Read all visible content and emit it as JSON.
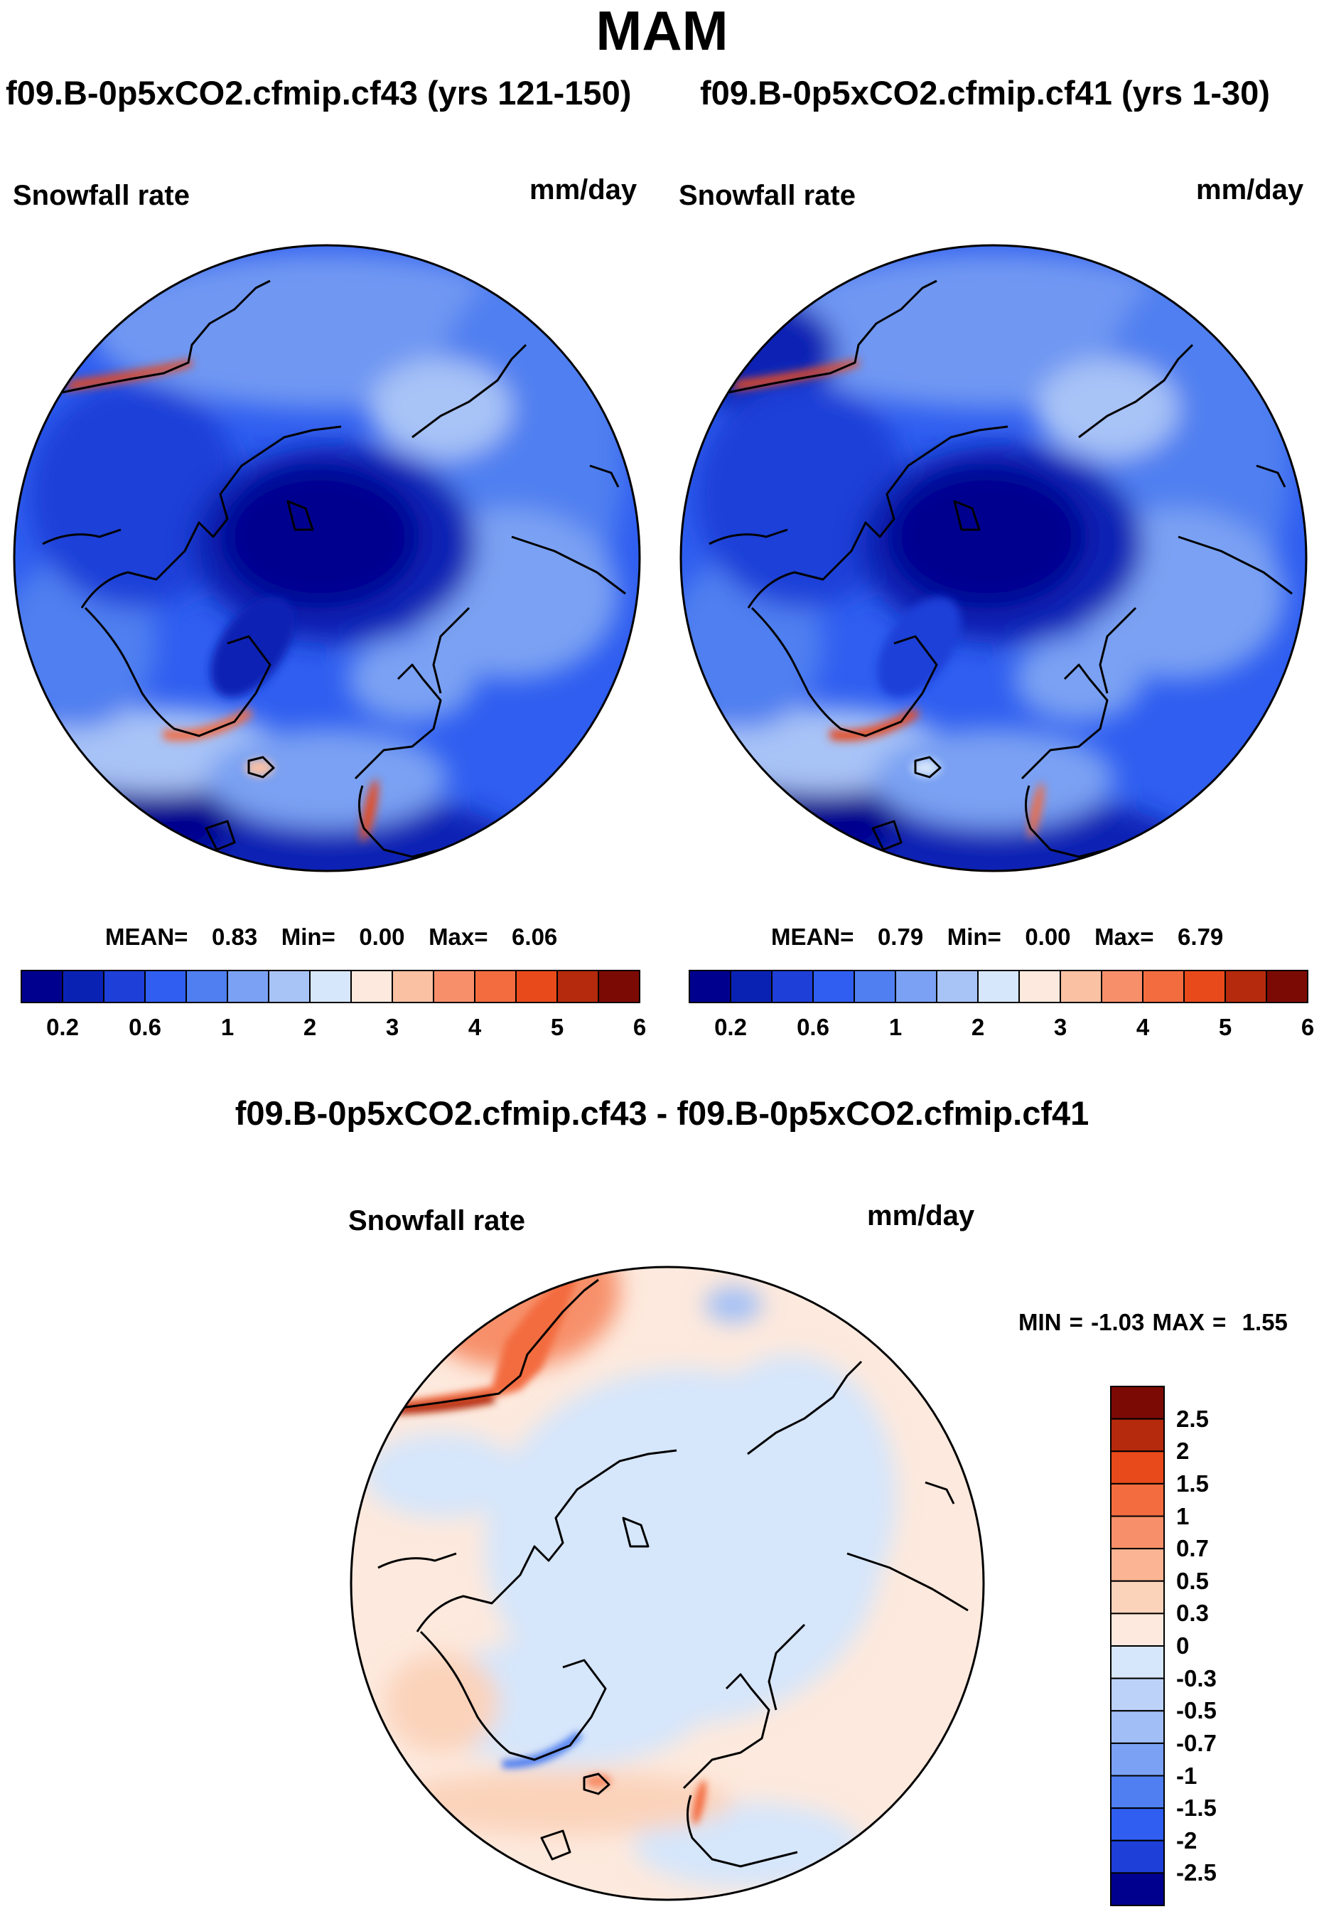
{
  "season": "MAM",
  "panels": [
    {
      "case": "f09.B-0p5xCO2.cfmip.cf43 (yrs 121-150)",
      "variable": "Snowfall rate",
      "units": "mm/day",
      "stats": {
        "mean_label": "MEAN=",
        "mean": "0.83",
        "min_label": "Min=",
        "min": "0.00",
        "max_label": "Max=",
        "max": "6.06"
      }
    },
    {
      "case": "f09.B-0p5xCO2.cfmip.cf41 (yrs 1-30)",
      "variable": "Snowfall rate",
      "units": "mm/day",
      "stats": {
        "mean_label": "MEAN=",
        "mean": "0.79",
        "min_label": "Min=",
        "min": "0.00",
        "max_label": "Max=",
        "max": "6.79"
      }
    }
  ],
  "difference": {
    "title": "f09.B-0p5xCO2.cfmip.cf43 - f09.B-0p5xCO2.cfmip.cf41",
    "variable": "Snowfall rate",
    "units": "mm/day",
    "minmax": {
      "min_label": "MIN =",
      "min": "-1.03",
      "max_label": "MAX =",
      "max": "1.55"
    }
  },
  "chart_data": [
    {
      "type": "heatmap",
      "projection": "north polar stereographic",
      "title": "f09.B-0p5xCO2.cfmip.cf43 (yrs 121-150)",
      "variable": "Snowfall rate",
      "units": "mm/day",
      "mean": 0.83,
      "min": 0.0,
      "max": 6.06,
      "colorbar": {
        "orientation": "horizontal",
        "levels": [
          0.2,
          0.4,
          0.6,
          0.8,
          1,
          1.5,
          2,
          2.5,
          3,
          3.5,
          4,
          4.5,
          5,
          5.5,
          6
        ],
        "tick_labels": [
          "0.2",
          "0.6",
          "1",
          "2",
          "3",
          "4",
          "5",
          "6"
        ],
        "colors": [
          "#00008f",
          "#0a22b4",
          "#1e3fd8",
          "#2f5ef0",
          "#4f7ff0",
          "#7aa1f3",
          "#a8c3f6",
          "#d6e6fb",
          "#fde9dd",
          "#fbc1a3",
          "#f7906a",
          "#f36c3f",
          "#e84a1b",
          "#b52a0c",
          "#7c0a04"
        ]
      }
    },
    {
      "type": "heatmap",
      "projection": "north polar stereographic",
      "title": "f09.B-0p5xCO2.cfmip.cf41 (yrs 1-30)",
      "variable": "Snowfall rate",
      "units": "mm/day",
      "mean": 0.79,
      "min": 0.0,
      "max": 6.79,
      "colorbar": {
        "orientation": "horizontal",
        "levels": [
          0.2,
          0.4,
          0.6,
          0.8,
          1,
          1.5,
          2,
          2.5,
          3,
          3.5,
          4,
          4.5,
          5,
          5.5,
          6
        ],
        "tick_labels": [
          "0.2",
          "0.6",
          "1",
          "2",
          "3",
          "4",
          "5",
          "6"
        ],
        "colors": [
          "#00008f",
          "#0a22b4",
          "#1e3fd8",
          "#2f5ef0",
          "#4f7ff0",
          "#7aa1f3",
          "#a8c3f6",
          "#d6e6fb",
          "#fde9dd",
          "#fbc1a3",
          "#f7906a",
          "#f36c3f",
          "#e84a1b",
          "#b52a0c",
          "#7c0a04"
        ]
      }
    },
    {
      "type": "heatmap",
      "projection": "north polar stereographic",
      "title": "f09.B-0p5xCO2.cfmip.cf43 - f09.B-0p5xCO2.cfmip.cf41",
      "variable": "Snowfall rate",
      "units": "mm/day",
      "min": -1.03,
      "max": 1.55,
      "colorbar": {
        "orientation": "vertical",
        "levels": [
          2.5,
          2,
          1.5,
          1,
          0.7,
          0.5,
          0.3,
          0,
          -0.3,
          -0.5,
          -0.7,
          -1,
          -1.5,
          -2,
          -2.5
        ],
        "tick_labels": [
          "2.5",
          "2",
          "1.5",
          "1",
          "0.7",
          "0.5",
          "0.3",
          "0",
          "-0.3",
          "-0.5",
          "-0.7",
          "-1",
          "-1.5",
          "-2",
          "-2.5"
        ],
        "colors": [
          "#7c0a04",
          "#b52a0c",
          "#e84a1b",
          "#f36c3f",
          "#f7906a",
          "#fbb594",
          "#fbd3bb",
          "#fde9dd",
          "#d6e6fb",
          "#bcd2f8",
          "#a1bff6",
          "#7aa1f3",
          "#4f7ff0",
          "#2f5ef0",
          "#1e3fd8",
          "#00008f"
        ]
      }
    }
  ]
}
